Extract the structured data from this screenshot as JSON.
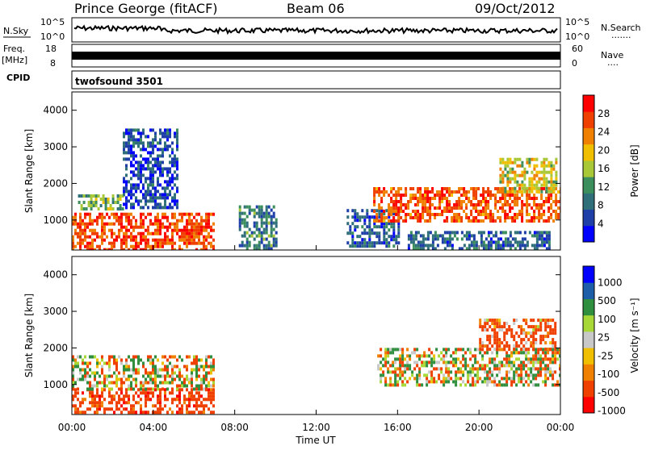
{
  "header": {
    "station": "Prince George (fitACF)",
    "beam": "Beam 06",
    "date": "09/Oct/2012"
  },
  "top_strip": {
    "left_label": "N.Sky",
    "left_ticks": [
      "10^5",
      "10^0"
    ],
    "right_label": "N.Search",
    "right_ticks": [
      "10^5",
      "10^0"
    ],
    "right_dots": "......."
  },
  "freq_strip": {
    "label_line1": "Freq.",
    "label_line2": "[MHz]",
    "left_ticks": [
      "18",
      "8"
    ],
    "right_label": "Nave",
    "right_ticks": [
      "60",
      "0"
    ],
    "right_dots": "...."
  },
  "cpid": {
    "label": "CPID",
    "value": "twofsound 3501"
  },
  "colors": {
    "power": [
      "#0000ff",
      "#1e3ea8",
      "#2f6f7a",
      "#3c8f5c",
      "#a8c838",
      "#f0c000",
      "#f08000",
      "#f04000",
      "#ff0000"
    ],
    "velocity": [
      "#ff0000",
      "#f04000",
      "#f08000",
      "#f0c000",
      "#c8c8c8",
      "#a8d838",
      "#2f8f3f",
      "#1e5ea8",
      "#0000ff"
    ]
  },
  "chart_data": [
    {
      "type": "heatmap",
      "title": "Power",
      "xlabel": "",
      "ylabel": "Slant Range [km]",
      "xlim": [
        "00:00",
        "24:00"
      ],
      "ylim": [
        180,
        4500
      ],
      "x_ticks": [
        "00:00",
        "04:00",
        "08:00",
        "12:00",
        "16:00",
        "20:00",
        "00:00"
      ],
      "y_ticks": [
        1000,
        2000,
        3000,
        4000
      ],
      "colorbar": {
        "label": "Power [dB]",
        "ticks": [
          4,
          8,
          12,
          16,
          20,
          24,
          28
        ],
        "range": [
          0,
          32
        ]
      },
      "regions": [
        {
          "x": [
            0.0,
            7.0
          ],
          "y": [
            200,
            1200
          ],
          "level": 27
        },
        {
          "x": [
            0.3,
            2.5
          ],
          "y": [
            1300,
            1700
          ],
          "level": 14
        },
        {
          "x": [
            2.5,
            5.2
          ],
          "y": [
            1300,
            3500
          ],
          "level": 6
        },
        {
          "x": [
            8.2,
            10.0
          ],
          "y": [
            200,
            1400
          ],
          "level": 10
        },
        {
          "x": [
            13.5,
            16.0
          ],
          "y": [
            300,
            1300
          ],
          "level": 7
        },
        {
          "x": [
            14.8,
            24.0
          ],
          "y": [
            1000,
            1900
          ],
          "level": 26
        },
        {
          "x": [
            21.0,
            23.8
          ],
          "y": [
            1800,
            2700
          ],
          "level": 18
        },
        {
          "x": [
            16.5,
            23.5
          ],
          "y": [
            200,
            700
          ],
          "level": 8
        }
      ]
    },
    {
      "type": "heatmap",
      "title": "Velocity",
      "xlabel": "Time UT",
      "ylabel": "Slant Range [km]",
      "xlim": [
        "00:00",
        "24:00"
      ],
      "ylim": [
        180,
        4500
      ],
      "x_ticks": [
        "00:00",
        "04:00",
        "08:00",
        "12:00",
        "16:00",
        "20:00",
        "00:00"
      ],
      "y_ticks": [
        1000,
        2000,
        3000,
        4000
      ],
      "colorbar": {
        "label": "Velocity [m s⁻¹]",
        "ticks": [
          "1000",
          "500",
          "100",
          "25",
          "-25",
          "-100",
          "-500",
          "-1000"
        ]
      },
      "regions": [
        {
          "x": [
            0.0,
            7.0
          ],
          "y": [
            200,
            900
          ],
          "velocity": -300
        },
        {
          "x": [
            0.0,
            7.0
          ],
          "y": [
            900,
            1800
          ],
          "velocity": 0
        },
        {
          "x": [
            15.0,
            24.0
          ],
          "y": [
            1000,
            2000
          ],
          "velocity": 0
        },
        {
          "x": [
            20.0,
            23.8
          ],
          "y": [
            2000,
            2800
          ],
          "velocity": -200
        }
      ]
    }
  ]
}
